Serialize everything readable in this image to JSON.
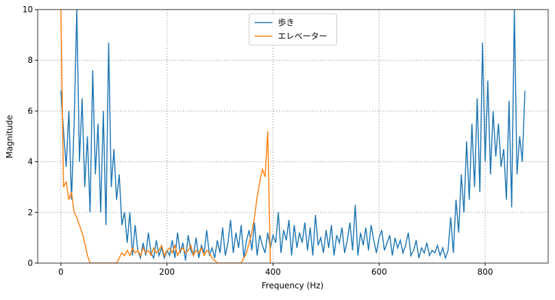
{
  "chart_data": {
    "type": "line",
    "xlabel": "Frequency (Hz)",
    "ylabel": "Magnitude",
    "xlim": [
      -43.75,
      918.75
    ],
    "ylim": [
      0,
      10
    ],
    "xticks": [
      0,
      200,
      400,
      600,
      800
    ],
    "yticks": [
      0,
      2,
      4,
      6,
      8,
      10
    ],
    "grid": true,
    "legend": "upper center",
    "series": [
      {
        "name": "歩き",
        "color": "#1f77b4",
        "x": [
          0,
          5,
          10,
          15,
          20,
          25,
          30,
          35,
          40,
          45,
          50,
          55,
          60,
          65,
          70,
          75,
          80,
          85,
          90,
          95,
          100,
          105,
          110,
          115,
          120,
          125,
          130,
          135,
          140,
          145,
          150,
          155,
          160,
          165,
          170,
          175,
          180,
          185,
          190,
          195,
          200,
          205,
          210,
          215,
          220,
          225,
          230,
          235,
          240,
          245,
          250,
          255,
          260,
          265,
          270,
          275,
          280,
          285,
          290,
          295,
          300,
          305,
          310,
          315,
          320,
          325,
          330,
          335,
          340,
          345,
          350,
          355,
          360,
          365,
          370,
          375,
          380,
          385,
          390,
          395,
          400,
          405,
          410,
          415,
          420,
          425,
          430,
          435,
          440,
          445,
          450,
          455,
          460,
          465,
          470,
          475,
          480,
          485,
          490,
          495,
          500,
          505,
          510,
          515,
          520,
          525,
          530,
          535,
          540,
          545,
          550,
          555,
          560,
          565,
          570,
          575,
          580,
          585,
          590,
          595,
          600,
          605,
          610,
          615,
          620,
          625,
          630,
          635,
          640,
          645,
          650,
          655,
          660,
          665,
          670,
          675,
          680,
          685,
          690,
          695,
          700,
          705,
          710,
          715,
          720,
          725,
          730,
          735,
          740,
          745,
          750,
          755,
          760,
          765,
          770,
          775,
          780,
          785,
          790,
          795,
          800,
          805,
          810,
          815,
          820,
          825,
          830,
          835,
          840,
          845,
          850,
          855,
          860,
          865,
          870,
          875
        ],
        "values": [
          6.8,
          5.2,
          3.8,
          6,
          2.5,
          5.5,
          10,
          4,
          6.5,
          3,
          5,
          2,
          7.6,
          3.5,
          5.5,
          2,
          6,
          1.5,
          8.7,
          3,
          4.5,
          2.5,
          3.5,
          1.5,
          2,
          0.8,
          2,
          0.3,
          1.5,
          0.5,
          0.2,
          0.8,
          0.3,
          1.2,
          0.4,
          0.2,
          0.9,
          0.3,
          0.6,
          0.2,
          0.5,
          0.3,
          0.9,
          0.2,
          1.2,
          0.4,
          0.8,
          0.1,
          1.1,
          0.5,
          0.3,
          1.0,
          0.2,
          0.7,
          0.4,
          1.3,
          0.3,
          0.6,
          0.2,
          0.9,
          0.4,
          1.4,
          0.3,
          0.8,
          1.7,
          0.4,
          1.2,
          0.6,
          1.5,
          0.2,
          0.9,
          1.3,
          0.5,
          1.6,
          0.3,
          1.1,
          0.7,
          0.4,
          1.2,
          0.6,
          1.1,
          0.8,
          2.0,
          0.4,
          1.3,
          0.9,
          1.7,
          0.3,
          1.5,
          0.6,
          1.2,
          0.8,
          1.6,
          0.5,
          1.4,
          0.3,
          1.9,
          0.7,
          1.0,
          0.4,
          1.3,
          0.6,
          1.5,
          0.3,
          1.1,
          0.8,
          1.4,
          0.4,
          0.9,
          1.6,
          0.5,
          2.3,
          0.3,
          1.2,
          0.7,
          1.4,
          0.5,
          1.5,
          0.9,
          0.4,
          1.0,
          1.3,
          0.5,
          0.8,
          1.1,
          0.3,
          1.0,
          0.6,
          0.9,
          0.4,
          0.7,
          1.2,
          0.3,
          0.5,
          0.9,
          0.2,
          0.6,
          0.4,
          0.8,
          0.3,
          0.5,
          0.4,
          0.7,
          0.3,
          0.6,
          0.2,
          0.5,
          1.8,
          0.4,
          2.5,
          1.2,
          3.5,
          2.0,
          4.8,
          2.5,
          5.5,
          3.0,
          6.5,
          2.8,
          8.7,
          4.0,
          7.2,
          3.5,
          6.0,
          4.2,
          5.5,
          3.8,
          4.5,
          2.5,
          6.4,
          2.2,
          10,
          3.5,
          5.0,
          4.0,
          6.8
        ]
      },
      {
        "name": "エレベーター",
        "color": "#ff7f0e",
        "x": [
          0,
          5,
          10,
          15,
          20,
          25,
          30,
          35,
          40,
          45,
          50,
          55,
          60,
          65,
          70,
          75,
          80,
          85,
          90,
          95,
          100,
          105,
          110,
          115,
          120,
          125,
          130,
          135,
          140,
          145,
          150,
          155,
          160,
          165,
          170,
          175,
          180,
          185,
          190,
          195,
          200,
          205,
          210,
          215,
          220,
          225,
          230,
          235,
          240,
          245,
          250,
          255,
          260,
          265,
          270,
          275,
          280,
          285,
          290,
          295,
          300,
          305,
          310,
          315,
          320,
          325,
          330,
          335,
          340,
          345,
          350,
          355,
          360,
          365,
          370,
          375,
          380,
          385,
          390,
          395
        ],
        "values": [
          10,
          3.0,
          3.2,
          2.5,
          2.8,
          2.0,
          1.8,
          1.5,
          1.2,
          0.8,
          0.3,
          0,
          0,
          0,
          0,
          0,
          0,
          0,
          0,
          0,
          0,
          0,
          0.2,
          0.4,
          0.3,
          0.5,
          0.3,
          0.6,
          0.4,
          0.5,
          0.3,
          0.6,
          0.4,
          0.5,
          0.3,
          0.6,
          0.4,
          0.5,
          0.7,
          0.3,
          0.5,
          0.6,
          0.4,
          0.7,
          0.3,
          0.5,
          0.6,
          0.4,
          0.5,
          0.7,
          0.3,
          0.5,
          0.4,
          0.6,
          0.3,
          0.5,
          0.4,
          0.2,
          0.1,
          0,
          0,
          0,
          0,
          0,
          0,
          0,
          0,
          0,
          0,
          0.2,
          0.4,
          0.8,
          1.2,
          1.8,
          2.6,
          3.2,
          3.7,
          3.4,
          5.2,
          0
        ]
      }
    ]
  }
}
